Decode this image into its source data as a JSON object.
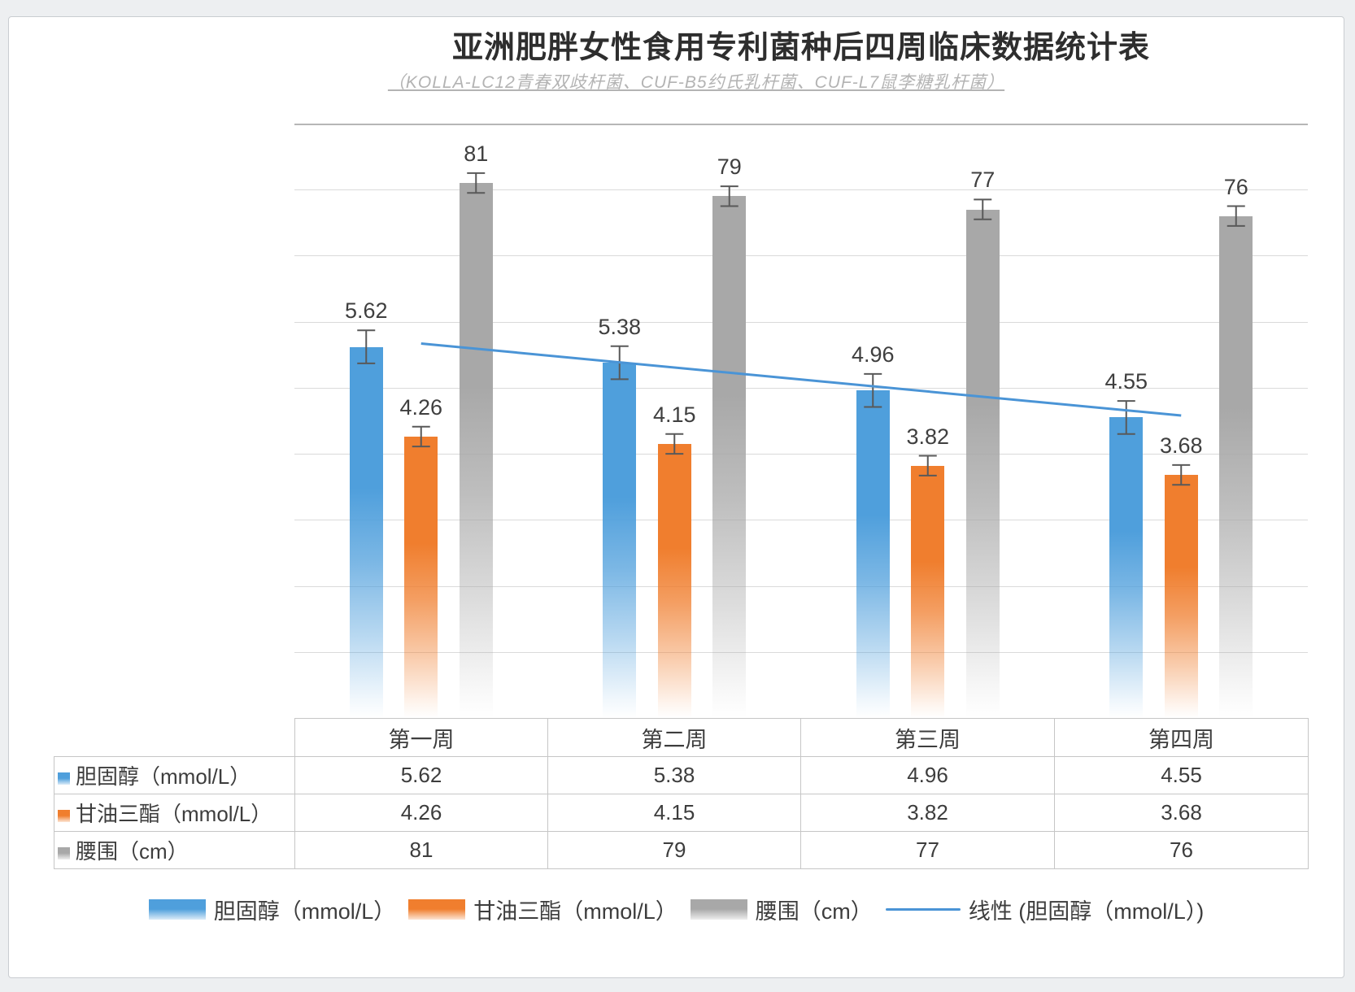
{
  "header": {
    "title": "亚洲肥胖女性食用专利菌种后四周临床数据统计表",
    "subtitle": "（KOLLA-LC12青春双歧杆菌、CUF-B5约氏乳杆菌、CUF-L7鼠李糖乳杆菌）"
  },
  "chart_data": {
    "type": "bar",
    "title": "亚洲肥胖女性食用专利菌种后四周临床数据统计表",
    "subtitle": "（KOLLA-LC12青春双歧杆菌、CUF-B5约氏乳杆菌、CUF-L7鼠李糖乳杆菌）",
    "categories": [
      "第一周",
      "第二周",
      "第三周",
      "第四周"
    ],
    "series": [
      {
        "name": "胆固醇（mmol/L）",
        "slug": "cholesterol",
        "axis": "primary",
        "color": "#4f9fdc",
        "values": [
          5.62,
          5.38,
          4.96,
          4.55
        ],
        "error": 0.25
      },
      {
        "name": "甘油三酯（mmol/L）",
        "slug": "triglyceride",
        "axis": "primary",
        "color": "#f07e2e",
        "values": [
          4.26,
          4.15,
          3.82,
          3.68
        ],
        "error": 0.15
      },
      {
        "name": "腰围（cm）",
        "slug": "waist",
        "axis": "secondary",
        "color": "#a8a8a8",
        "values": [
          81,
          79,
          77,
          76
        ],
        "error": 1.5
      }
    ],
    "trendline": {
      "name": "线性 (胆固醇（mmol/L）)",
      "of_series": "胆固醇（mmol/L）",
      "start_value": 5.67,
      "end_value": 4.58,
      "color": "#4a94d6"
    },
    "axes": {
      "primary": {
        "min": 0,
        "max": 9,
        "major": 1,
        "unit": "mmol/L",
        "labels_visible": false
      },
      "secondary": {
        "min": 0,
        "max": 90,
        "major": 10,
        "unit": "cm",
        "labels_visible": false
      }
    },
    "gridlines": true,
    "data_labels": true,
    "error_bars": true,
    "bar_fill": "gradient-fade-to-white-at-bottom",
    "legend_position": "bottom"
  },
  "colors": {
    "cholesterol": "#4f9fdc",
    "triglyceride": "#f07e2e",
    "waist": "#a8a8a8",
    "trendline": "#4a94d6",
    "gridline": "#dadada",
    "plot_top_border": "#b6b6b6",
    "table_border": "#c6c6c6",
    "label_text": "#3f3f3f"
  }
}
